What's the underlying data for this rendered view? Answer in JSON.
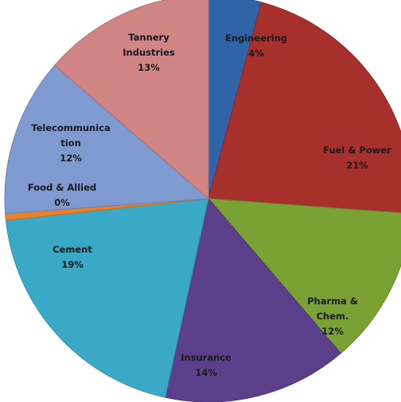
{
  "chart_data": {
    "type": "pie",
    "slices": [
      {
        "label_lines": [
          "Engineering",
          "4%"
        ],
        "value": 4,
        "color": "#2f63a8"
      },
      {
        "label_lines": [
          "Fuel & Power",
          "21%"
        ],
        "value": 21,
        "color": "#a8302c"
      },
      {
        "label_lines": [
          "Pharma &",
          "Chem.",
          "12%"
        ],
        "value": 12,
        "color": "#7aa133"
      },
      {
        "label_lines": [
          "Insurance",
          "14%"
        ],
        "value": 14,
        "color": "#5c3f8a"
      },
      {
        "label_lines": [
          "Cement",
          "19%"
        ],
        "value": 19,
        "color": "#3aa9c7"
      },
      {
        "label_lines": [
          "Food & Allied",
          "0%"
        ],
        "value": 0.5,
        "color": "#e8812c"
      },
      {
        "label_lines": [
          "Telecommunica",
          "tion",
          "12%"
        ],
        "value": 12,
        "color": "#7f9ad0"
      },
      {
        "label_lines": [
          "Tannery",
          "Industries",
          "13%"
        ],
        "value": 13,
        "color": "#d08483"
      }
    ],
    "start_angle_deg": 0,
    "direction": "clockwise",
    "legend": "none"
  }
}
